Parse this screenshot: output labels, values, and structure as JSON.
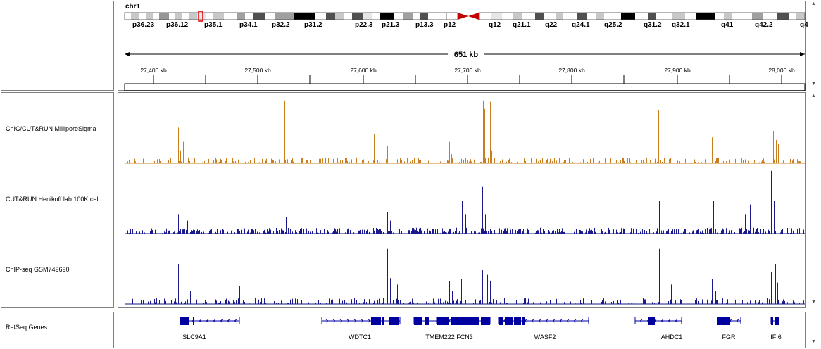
{
  "ideogram": {
    "chromosome": "chr1",
    "bands": [
      "p36.23",
      "p36.12",
      "p35.1",
      "p34.1",
      "p32.2",
      "p31.2",
      "p22.3",
      "p21.3",
      "p13.3",
      "p12",
      "q12",
      "q21.1",
      "q22",
      "q24.1",
      "q25.2",
      "q31.2",
      "q32.1",
      "q41",
      "q42.2",
      "q4"
    ]
  },
  "ruler": {
    "span_label": "651 kb",
    "ticks": [
      "27,400 kb",
      "27,500 kb",
      "27,600 kb",
      "27,700 kb",
      "27,800 kb",
      "27,900 kb",
      "28,000 kb"
    ]
  },
  "tracks": [
    {
      "name": "ChIC/CUT&RUN MilliporeSigma",
      "color": "#c87d1e"
    },
    {
      "name": "CUT&RUN Henikoff lab 100K cel",
      "color": "#1a1a8a"
    },
    {
      "name": "ChIP-seq GSM749690",
      "color": "#1a1a8a"
    }
  ],
  "genes_track": {
    "name": "RefSeq Genes",
    "color": "#0000a0",
    "genes": [
      "SLC9A1",
      "WDTC1",
      "TMEM222",
      "FCN3",
      "WASF2",
      "AHDC1",
      "FGR",
      "IFI6"
    ]
  },
  "colors": {
    "centromere": "#c00000",
    "current_region": "#e00000",
    "panel_border": "#808080"
  }
}
